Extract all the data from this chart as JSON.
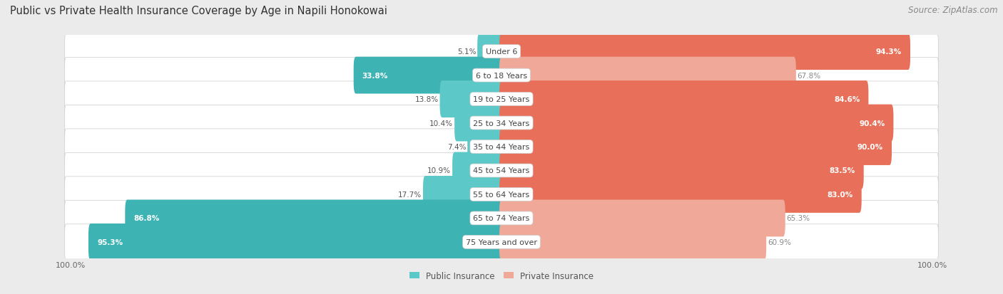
{
  "title": "Public vs Private Health Insurance Coverage by Age in Napili Honokowai",
  "source": "Source: ZipAtlas.com",
  "categories": [
    "Under 6",
    "6 to 18 Years",
    "19 to 25 Years",
    "25 to 34 Years",
    "35 to 44 Years",
    "45 to 54 Years",
    "55 to 64 Years",
    "65 to 74 Years",
    "75 Years and over"
  ],
  "public_values": [
    5.1,
    33.8,
    13.8,
    10.4,
    7.4,
    10.9,
    17.7,
    86.8,
    95.3
  ],
  "private_values": [
    94.3,
    67.8,
    84.6,
    90.4,
    90.0,
    83.5,
    83.0,
    65.3,
    60.9
  ],
  "public_color_high": "#3db3b3",
  "public_color_low": "#5dc8c8",
  "private_color_high": "#e8705a",
  "private_color_low": "#f0a898",
  "bg_color": "#ebebeb",
  "row_bg_color": "#f5f5f5",
  "title_fontsize": 10.5,
  "source_fontsize": 8.5,
  "label_fontsize": 8,
  "value_fontsize": 7.5,
  "legend_fontsize": 8.5,
  "axis_label_fontsize": 8,
  "max_val": 100,
  "public_threshold": 30,
  "private_threshold": 70
}
